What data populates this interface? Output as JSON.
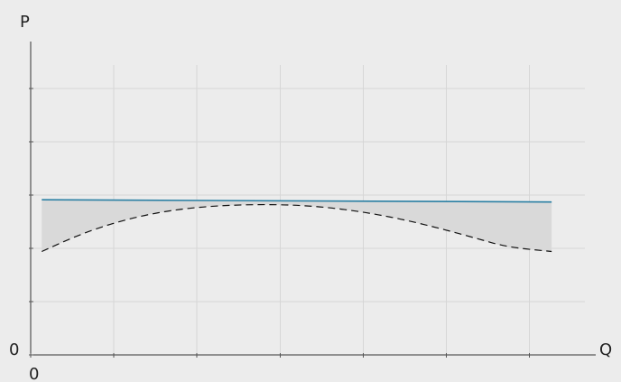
{
  "chart_data": {
    "type": "line",
    "xlabel": "Q",
    "ylabel": "P",
    "xlim": [
      0,
      10
    ],
    "ylim": [
      0,
      10
    ],
    "x_ticks": [
      0,
      1.5,
      3,
      4.5,
      6,
      7.5,
      9
    ],
    "x_tick_labels": [
      "0"
    ],
    "y_ticks": [
      0,
      1.7,
      3.4,
      5.1,
      6.8,
      8.5
    ],
    "y_tick_labels": [
      "0"
    ],
    "grid": true,
    "series": [
      {
        "kind": "solid",
        "color": "#2a7fa3",
        "x": [
          0.2,
          9.4
        ],
        "y": [
          4.95,
          4.88
        ]
      },
      {
        "kind": "dashed",
        "color": "#111111",
        "x": [
          0.2,
          0.8,
          1.4,
          2,
          2.6,
          3.2,
          3.8,
          4.4,
          5,
          5.6,
          6.2,
          6.8,
          7.4,
          8,
          8.6,
          9.4
        ],
        "y": [
          3.3,
          3.78,
          4.16,
          4.44,
          4.63,
          4.74,
          4.79,
          4.8,
          4.76,
          4.66,
          4.5,
          4.29,
          4.03,
          3.74,
          3.44,
          3.3
        ]
      }
    ],
    "shaded_area": {
      "between": "solid-and-dashed",
      "color": "#d9d9d9"
    }
  }
}
